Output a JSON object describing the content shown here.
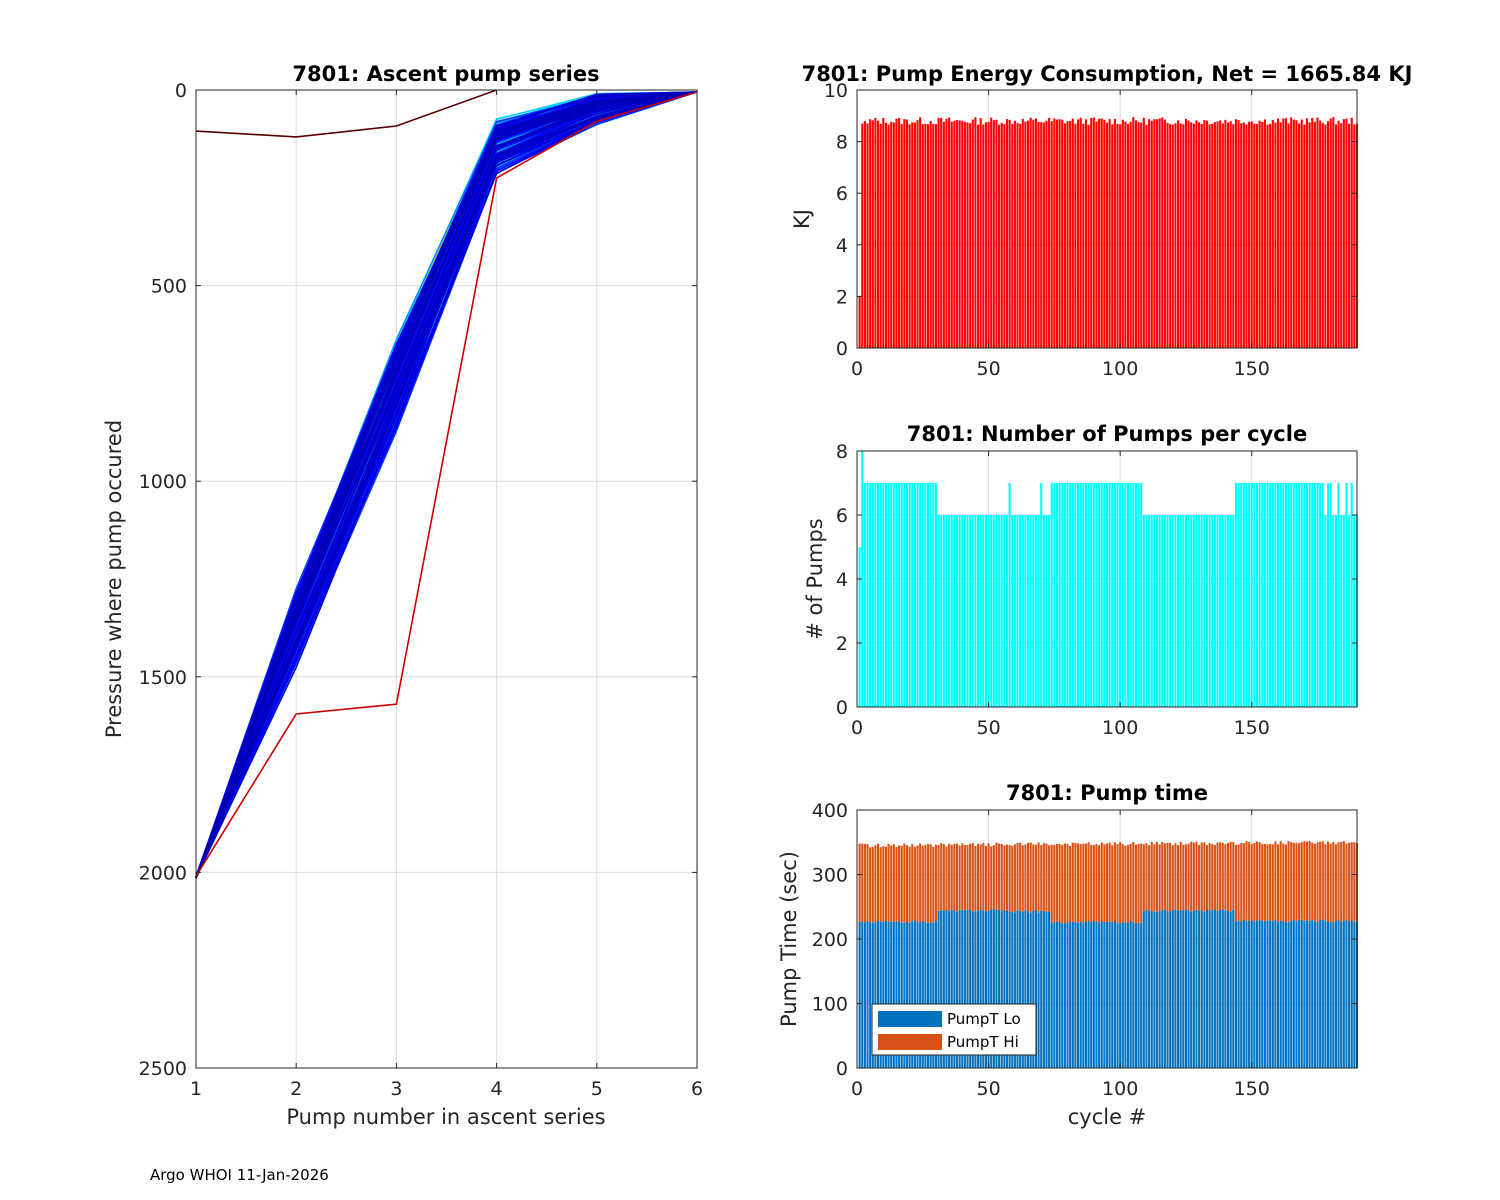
{
  "footer": "Argo WHOI 11-Jan-2026",
  "chart_data": [
    {
      "type": "line",
      "title": "7801: Ascent pump series",
      "xlabel": "Pump number in ascent series",
      "ylabel": "Pressure where pump occured",
      "xlim": [
        1,
        6
      ],
      "ylim": [
        0,
        2500
      ],
      "y_reversed": true,
      "xticks": [
        1,
        2,
        3,
        4,
        5,
        6
      ],
      "yticks": [
        0,
        500,
        1000,
        1500,
        2000,
        2500
      ],
      "grid": true,
      "colormap": "jet (early cycles red, late cycles dark blue)",
      "n_profiles": 190,
      "series_envelope": {
        "x": [
          1,
          2,
          3,
          4,
          5,
          6
        ],
        "shallow": [
          2010,
          1250,
          610,
          60,
          0,
          5
        ],
        "deep": [
          2015,
          1500,
          900,
          230,
          100,
          5
        ]
      },
      "outliers": [
        {
          "name": "cycle 1",
          "x": [
            1,
            2,
            3,
            4
          ],
          "y": [
            105,
            120,
            92,
            0
          ]
        },
        {
          "name": "cycle 2",
          "x": [
            1,
            2,
            3,
            4,
            5,
            6
          ],
          "y": [
            2010,
            1595,
            1570,
            225,
            80,
            5
          ]
        }
      ]
    },
    {
      "type": "bar",
      "title": "7801: Pump Energy Consumption,  Net = 1665.84 KJ",
      "xlabel": "",
      "ylabel": "KJ",
      "xlim": [
        0,
        190
      ],
      "ylim": [
        0,
        10
      ],
      "xticks": [
        0,
        50,
        100,
        150
      ],
      "yticks": [
        0,
        2,
        4,
        6,
        8,
        10
      ],
      "color": "#ff0000",
      "n_cycles": 190,
      "typical_value": 8.8,
      "range": [
        8.6,
        9.1
      ],
      "values_first_cycles": [
        2.0,
        8.7,
        8.8,
        8.7
      ]
    },
    {
      "type": "bar",
      "title": "7801: Number of Pumps per cycle",
      "xlabel": "",
      "ylabel": "# of Pumps",
      "xlim": [
        0,
        190
      ],
      "ylim": [
        0,
        8
      ],
      "xticks": [
        0,
        50,
        100,
        150
      ],
      "yticks": [
        0,
        2,
        4,
        6,
        8
      ],
      "color": "#00ffff",
      "segments": [
        {
          "cycles": [
            1,
            1
          ],
          "value": 5
        },
        {
          "cycles": [
            2,
            2
          ],
          "value": 8
        },
        {
          "cycles": [
            3,
            30
          ],
          "value": 7
        },
        {
          "cycles": [
            31,
            57
          ],
          "value": 6
        },
        {
          "cycles": [
            58,
            58
          ],
          "value": 7
        },
        {
          "cycles": [
            59,
            69
          ],
          "value": 6
        },
        {
          "cycles": [
            70,
            70
          ],
          "value": 7
        },
        {
          "cycles": [
            71,
            73
          ],
          "value": 6
        },
        {
          "cycles": [
            74,
            108
          ],
          "value": 7
        },
        {
          "cycles": [
            109,
            143
          ],
          "value": 6
        },
        {
          "cycles": [
            144,
            177
          ],
          "value": 7
        },
        {
          "cycles": [
            178,
            178
          ],
          "value": 6
        },
        {
          "cycles": [
            179,
            180
          ],
          "value": 7
        },
        {
          "cycles": [
            181,
            182
          ],
          "value": 6
        },
        {
          "cycles": [
            183,
            183
          ],
          "value": 7
        },
        {
          "cycles": [
            184,
            185
          ],
          "value": 6
        },
        {
          "cycles": [
            186,
            186
          ],
          "value": 7
        },
        {
          "cycles": [
            187,
            187
          ],
          "value": 6
        },
        {
          "cycles": [
            188,
            188
          ],
          "value": 7
        },
        {
          "cycles": [
            189,
            190
          ],
          "value": 6
        }
      ]
    },
    {
      "type": "bar",
      "stacked": true,
      "title": "7801: Pump time",
      "xlabel": "cycle #",
      "ylabel": "Pump Time (sec)",
      "xlim": [
        0,
        190
      ],
      "ylim": [
        0,
        400
      ],
      "xticks": [
        0,
        50,
        100,
        150
      ],
      "yticks": [
        0,
        100,
        200,
        300,
        400
      ],
      "legend_position": "bottom-left",
      "series": [
        {
          "name": "PumpT Lo",
          "color": "#0072bd",
          "typical_value": 228,
          "range": [
            220,
            250
          ]
        },
        {
          "name": "PumpT Hi",
          "color": "#d95319",
          "typical_total": 345,
          "total_range": [
            340,
            352
          ]
        }
      ],
      "lo_segments": [
        {
          "cycles": [
            1,
            30
          ],
          "value": 227
        },
        {
          "cycles": [
            31,
            57
          ],
          "value": 244
        },
        {
          "cycles": [
            58,
            73
          ],
          "value": 243
        },
        {
          "cycles": [
            74,
            108
          ],
          "value": 226
        },
        {
          "cycles": [
            109,
            143
          ],
          "value": 244
        },
        {
          "cycles": [
            144,
            190
          ],
          "value": 228
        }
      ]
    }
  ]
}
